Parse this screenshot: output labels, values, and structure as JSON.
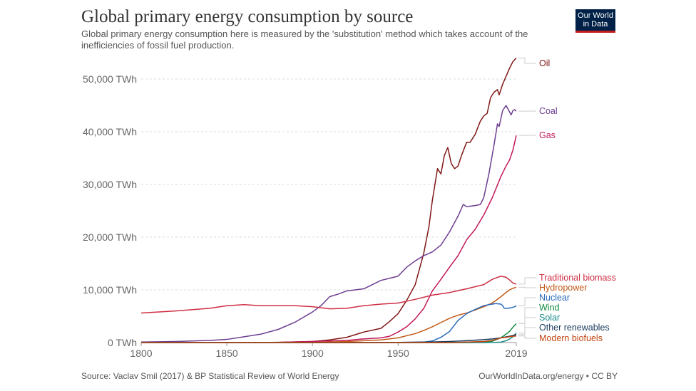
{
  "header": {
    "title": "Global primary energy consumption by source",
    "subtitle": "Global primary energy consumption here is measured by the 'substitution' method which takes account of the inefficiencies of fossil fuel production."
  },
  "logo": {
    "line1": "Our World",
    "line2": "in Data"
  },
  "footer": {
    "source": "Source: Vaclav Smil (2017) & BP Statistical Review of World Energy",
    "url": "OurWorldInData.org/energy • CC BY"
  },
  "chart_data": {
    "type": "line",
    "title": "Global primary energy consumption by source",
    "xlabel": "",
    "ylabel": "",
    "xlim": [
      1800,
      2019
    ],
    "ylim": [
      0,
      55000
    ],
    "yticks": [
      {
        "value": 0,
        "label": "0 TWh"
      },
      {
        "value": 10000,
        "label": "10,000 TWh"
      },
      {
        "value": 20000,
        "label": "20,000 TWh"
      },
      {
        "value": 30000,
        "label": "30,000 TWh"
      },
      {
        "value": 40000,
        "label": "40,000 TWh"
      },
      {
        "value": 50000,
        "label": "50,000 TWh"
      }
    ],
    "xticks": [
      {
        "value": 1800,
        "label": "1800"
      },
      {
        "value": 1850,
        "label": "1850"
      },
      {
        "value": 1900,
        "label": "1900"
      },
      {
        "value": 1950,
        "label": "1950"
      },
      {
        "value": 2019,
        "label": "2019"
      }
    ],
    "grid": true,
    "series": [
      {
        "name": "Oil",
        "color": "#801817",
        "points": [
          [
            1800,
            0
          ],
          [
            1860,
            0
          ],
          [
            1880,
            50
          ],
          [
            1900,
            200
          ],
          [
            1910,
            500
          ],
          [
            1920,
            1000
          ],
          [
            1930,
            2000
          ],
          [
            1940,
            2700
          ],
          [
            1945,
            4000
          ],
          [
            1950,
            5500
          ],
          [
            1955,
            8000
          ],
          [
            1960,
            11000
          ],
          [
            1965,
            17000
          ],
          [
            1968,
            22000
          ],
          [
            1970,
            27000
          ],
          [
            1972,
            31000
          ],
          [
            1973,
            33000
          ],
          [
            1975,
            32000
          ],
          [
            1977,
            35500
          ],
          [
            1979,
            37000
          ],
          [
            1981,
            34000
          ],
          [
            1983,
            33000
          ],
          [
            1985,
            33500
          ],
          [
            1987,
            35500
          ],
          [
            1990,
            38000
          ],
          [
            1992,
            38000
          ],
          [
            1995,
            39500
          ],
          [
            1998,
            42000
          ],
          [
            2000,
            43000
          ],
          [
            2002,
            43500
          ],
          [
            2004,
            46500
          ],
          [
            2006,
            47500
          ],
          [
            2008,
            48000
          ],
          [
            2009,
            47000
          ],
          [
            2011,
            49000
          ],
          [
            2013,
            50500
          ],
          [
            2015,
            52000
          ],
          [
            2017,
            53300
          ],
          [
            2019,
            54000
          ]
        ]
      },
      {
        "name": "Coal",
        "color": "#6d3e91",
        "points": [
          [
            1800,
            100
          ],
          [
            1820,
            200
          ],
          [
            1840,
            400
          ],
          [
            1850,
            600
          ],
          [
            1860,
            1100
          ],
          [
            1870,
            1600
          ],
          [
            1880,
            2500
          ],
          [
            1890,
            3900
          ],
          [
            1900,
            5800
          ],
          [
            1905,
            7000
          ],
          [
            1910,
            8700
          ],
          [
            1915,
            9200
          ],
          [
            1920,
            9800
          ],
          [
            1930,
            10200
          ],
          [
            1935,
            11000
          ],
          [
            1940,
            11800
          ],
          [
            1945,
            12200
          ],
          [
            1950,
            12600
          ],
          [
            1955,
            14300
          ],
          [
            1960,
            15500
          ],
          [
            1965,
            16500
          ],
          [
            1970,
            17200
          ],
          [
            1975,
            18500
          ],
          [
            1980,
            21000
          ],
          [
            1985,
            24000
          ],
          [
            1988,
            26200
          ],
          [
            1990,
            25800
          ],
          [
            1995,
            26000
          ],
          [
            1998,
            26200
          ],
          [
            2000,
            27500
          ],
          [
            2003,
            32000
          ],
          [
            2006,
            37500
          ],
          [
            2008,
            41500
          ],
          [
            2009,
            41000
          ],
          [
            2011,
            44000
          ],
          [
            2013,
            45000
          ],
          [
            2015,
            43800
          ],
          [
            2016,
            43200
          ],
          [
            2017,
            44000
          ],
          [
            2018,
            44200
          ],
          [
            2019,
            43900
          ]
        ]
      },
      {
        "name": "Gas",
        "color": "#c2185b",
        "points": [
          [
            1800,
            0
          ],
          [
            1880,
            30
          ],
          [
            1900,
            200
          ],
          [
            1920,
            400
          ],
          [
            1930,
            700
          ],
          [
            1940,
            900
          ],
          [
            1945,
            1200
          ],
          [
            1950,
            2000
          ],
          [
            1955,
            3000
          ],
          [
            1960,
            4500
          ],
          [
            1965,
            6500
          ],
          [
            1970,
            9800
          ],
          [
            1975,
            12000
          ],
          [
            1980,
            14300
          ],
          [
            1985,
            16500
          ],
          [
            1990,
            19500
          ],
          [
            1995,
            21500
          ],
          [
            2000,
            24200
          ],
          [
            2005,
            27500
          ],
          [
            2010,
            31500
          ],
          [
            2013,
            33500
          ],
          [
            2015,
            34600
          ],
          [
            2017,
            36500
          ],
          [
            2019,
            39300
          ]
        ]
      },
      {
        "name": "Traditional biomass",
        "color": "#cf2e44",
        "points": [
          [
            1800,
            5600
          ],
          [
            1820,
            6000
          ],
          [
            1840,
            6500
          ],
          [
            1850,
            7000
          ],
          [
            1860,
            7200
          ],
          [
            1870,
            7000
          ],
          [
            1880,
            7000
          ],
          [
            1890,
            7000
          ],
          [
            1900,
            6800
          ],
          [
            1910,
            6400
          ],
          [
            1920,
            6500
          ],
          [
            1930,
            7000
          ],
          [
            1940,
            7300
          ],
          [
            1950,
            7500
          ],
          [
            1960,
            8200
          ],
          [
            1970,
            9000
          ],
          [
            1980,
            9500
          ],
          [
            1990,
            10200
          ],
          [
            2000,
            11000
          ],
          [
            2005,
            12000
          ],
          [
            2010,
            12600
          ],
          [
            2013,
            12400
          ],
          [
            2015,
            11900
          ],
          [
            2017,
            11300
          ],
          [
            2019,
            11100
          ]
        ]
      },
      {
        "name": "Hydropower",
        "color": "#c05917",
        "points": [
          [
            1800,
            0
          ],
          [
            1900,
            20
          ],
          [
            1910,
            100
          ],
          [
            1920,
            200
          ],
          [
            1930,
            350
          ],
          [
            1940,
            500
          ],
          [
            1950,
            900
          ],
          [
            1960,
            1700
          ],
          [
            1965,
            2300
          ],
          [
            1970,
            3000
          ],
          [
            1975,
            3800
          ],
          [
            1980,
            4600
          ],
          [
            1985,
            5200
          ],
          [
            1990,
            5600
          ],
          [
            1995,
            6200
          ],
          [
            2000,
            6800
          ],
          [
            2005,
            7500
          ],
          [
            2010,
            8700
          ],
          [
            2013,
            9500
          ],
          [
            2015,
            10000
          ],
          [
            2017,
            10300
          ],
          [
            2019,
            10500
          ]
        ]
      },
      {
        "name": "Nuclear",
        "color": "#286bbb",
        "points": [
          [
            1800,
            0
          ],
          [
            1960,
            0
          ],
          [
            1965,
            80
          ],
          [
            1970,
            300
          ],
          [
            1975,
            1000
          ],
          [
            1980,
            2100
          ],
          [
            1985,
            4200
          ],
          [
            1990,
            5500
          ],
          [
            1995,
            6300
          ],
          [
            2000,
            7000
          ],
          [
            2003,
            7200
          ],
          [
            2005,
            7300
          ],
          [
            2007,
            7400
          ],
          [
            2010,
            7300
          ],
          [
            2011,
            7000
          ],
          [
            2012,
            6500
          ],
          [
            2014,
            6500
          ],
          [
            2016,
            6600
          ],
          [
            2018,
            6800
          ],
          [
            2019,
            7000
          ]
        ]
      },
      {
        "name": "Wind",
        "color": "#108a3d",
        "points": [
          [
            1800,
            0
          ],
          [
            1990,
            0
          ],
          [
            1995,
            20
          ],
          [
            2000,
            80
          ],
          [
            2005,
            250
          ],
          [
            2010,
            900
          ],
          [
            2013,
            1600
          ],
          [
            2015,
            2100
          ],
          [
            2017,
            2900
          ],
          [
            2019,
            3600
          ]
        ]
      },
      {
        "name": "Solar",
        "color": "#1a8a8a",
        "points": [
          [
            1800,
            0
          ],
          [
            2000,
            0
          ],
          [
            2005,
            10
          ],
          [
            2010,
            80
          ],
          [
            2013,
            350
          ],
          [
            2015,
            650
          ],
          [
            2017,
            1100
          ],
          [
            2019,
            1800
          ]
        ]
      },
      {
        "name": "Other renewables",
        "color": "#1a3a5c",
        "points": [
          [
            1800,
            0
          ],
          [
            1930,
            0
          ],
          [
            1950,
            30
          ],
          [
            1960,
            80
          ],
          [
            1970,
            120
          ],
          [
            1980,
            200
          ],
          [
            1990,
            350
          ],
          [
            2000,
            550
          ],
          [
            2005,
            700
          ],
          [
            2010,
            900
          ],
          [
            2015,
            1200
          ],
          [
            2019,
            1500
          ]
        ]
      },
      {
        "name": "Modern biofuels",
        "color": "#c1440e",
        "points": [
          [
            1800,
            0
          ],
          [
            1980,
            0
          ],
          [
            1985,
            40
          ],
          [
            1990,
            100
          ],
          [
            1995,
            150
          ],
          [
            2000,
            200
          ],
          [
            2005,
            400
          ],
          [
            2010,
            900
          ],
          [
            2013,
            1000
          ],
          [
            2015,
            1100
          ],
          [
            2017,
            1200
          ],
          [
            2019,
            1250
          ]
        ]
      }
    ]
  }
}
